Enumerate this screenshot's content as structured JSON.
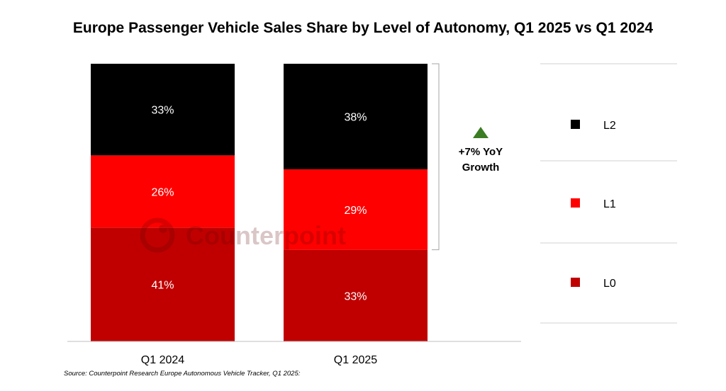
{
  "chart_data": {
    "type": "bar",
    "stacked": true,
    "title": "Europe Passenger Vehicle Sales Share by Level of Autonomy, Q1 2025 vs Q1 2024",
    "categories": [
      "Q1 2024",
      "Q1 2025"
    ],
    "series": [
      {
        "name": "L0",
        "color": "#C00000",
        "values": [
          41,
          33
        ],
        "labels": [
          "41%",
          "33%"
        ]
      },
      {
        "name": "L1",
        "color": "#FF0000",
        "values": [
          26,
          29
        ],
        "labels": [
          "26%",
          "29%"
        ]
      },
      {
        "name": "L2",
        "color": "#000000",
        "values": [
          33,
          38
        ],
        "labels": [
          "33%",
          "38%"
        ]
      }
    ],
    "ylim": [
      0,
      100
    ],
    "legend": [
      "L2",
      "L1",
      "L0"
    ],
    "legend_position": "right",
    "annotation": {
      "line1": "+7% YoY",
      "line2": "Growth",
      "marker_color": "#3A7D22"
    },
    "watermark": "Counterpoint",
    "source": "Source: Counterpoint Research Europe Autonomous Vehicle Tracker, Q1 2025:"
  }
}
